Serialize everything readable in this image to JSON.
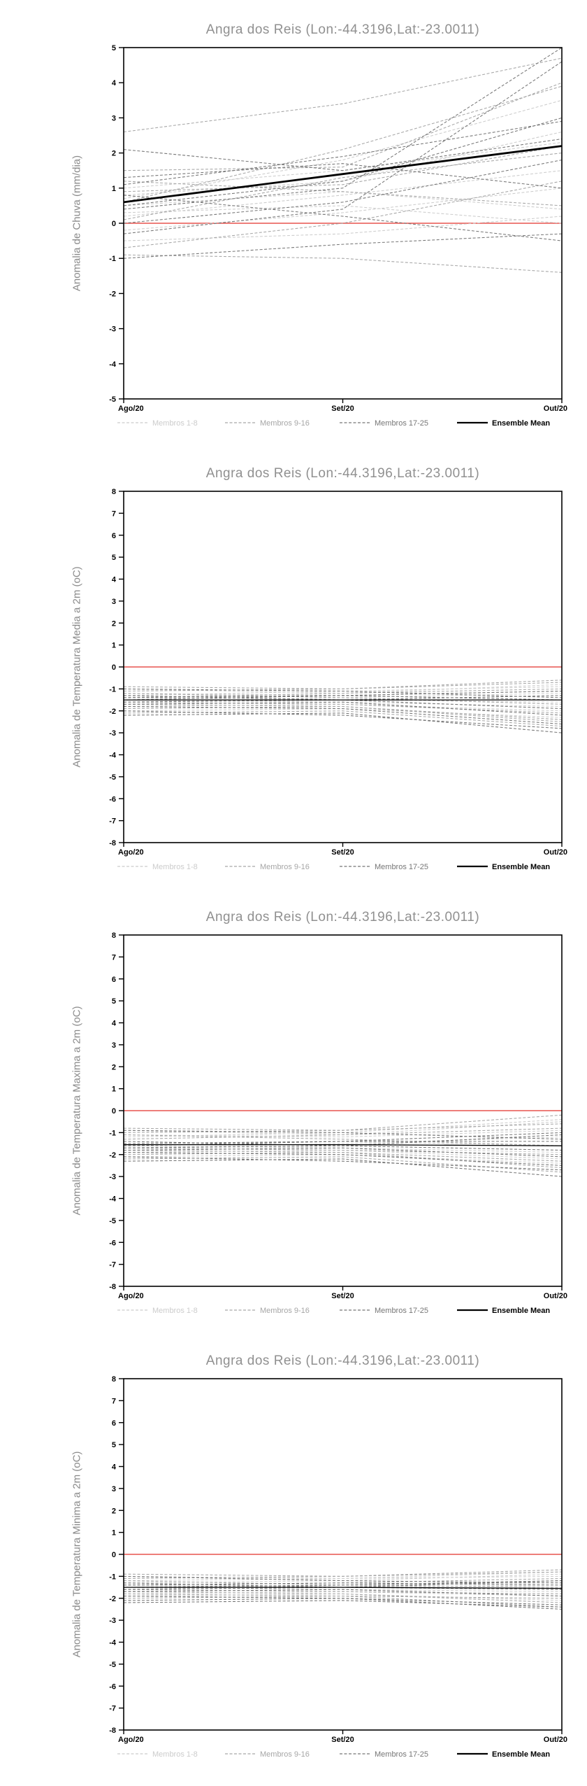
{
  "page": {
    "location_title": "Angra dos Reis (Lon:-44.3196,Lat:-23.0011)"
  },
  "colors": {
    "title": "#909090",
    "ylabel": "#8a8a8a",
    "axis": "#000000",
    "tick_label": "#000000",
    "zero_line": "#e8534e",
    "mean": "#000000",
    "member_light": "#cccccc",
    "member_mid": "#a6a6a6",
    "member_dark": "#767676"
  },
  "chart_data": [
    {
      "type": "line",
      "title": "Angra dos Reis (Lon:-44.3196,Lat:-23.0011)",
      "ylabel": "Anomalia de Chuva (mm/dia)",
      "x_labels": [
        "Ago/20",
        "Set/20",
        "Out/20"
      ],
      "ylim": [
        -5,
        5
      ],
      "y_tick_step": 1,
      "zero_line_value": 0,
      "mean_label": "Ensemble Mean",
      "mean_stroke_width": 2.8,
      "ensemble_mean": [
        0.6,
        1.4,
        2.2
      ],
      "groups": [
        {
          "name": "Membros 1-8",
          "color": "#cccccc",
          "series": [
            [
              0.8,
              1.2,
              2.6
            ],
            [
              0.5,
              0.9,
              0.4
            ],
            [
              -0.2,
              0.3,
              1.0
            ],
            [
              1.0,
              1.5,
              2.3
            ],
            [
              0.2,
              0.8,
              1.5
            ],
            [
              -0.5,
              -0.3,
              0.2
            ],
            [
              0.7,
              1.8,
              3.5
            ],
            [
              0.3,
              0.5,
              0.0
            ]
          ]
        },
        {
          "name": "Membros 9-16",
          "color": "#a6a6a6",
          "series": [
            [
              2.6,
              3.4,
              4.7
            ],
            [
              1.5,
              1.6,
              4.0
            ],
            [
              0.9,
              1.1,
              2.2
            ],
            [
              -0.9,
              -1.0,
              -1.4
            ],
            [
              0.1,
              1.3,
              2.0
            ],
            [
              1.2,
              0.9,
              0.5
            ],
            [
              -0.7,
              0.0,
              1.2
            ],
            [
              0.6,
              2.1,
              3.9
            ]
          ]
        },
        {
          "name": "Membros 17-25",
          "color": "#767676",
          "series": [
            [
              2.1,
              1.5,
              2.4
            ],
            [
              0.4,
              1.0,
              5.0
            ],
            [
              -1.0,
              -0.6,
              -0.3
            ],
            [
              0.0,
              0.6,
              1.8
            ],
            [
              1.1,
              1.9,
              2.9
            ],
            [
              0.8,
              0.2,
              -0.5
            ],
            [
              -0.3,
              0.4,
              4.6
            ],
            [
              0.5,
              1.2,
              3.0
            ],
            [
              1.3,
              1.7,
              1.0
            ]
          ]
        }
      ]
    },
    {
      "type": "line",
      "title": "Angra dos Reis (Lon:-44.3196,Lat:-23.0011)",
      "ylabel": "Anomalia de Temperatura Media a 2m (oC)",
      "x_labels": [
        "Ago/20",
        "Set/20",
        "Out/20"
      ],
      "ylim": [
        -8,
        8
      ],
      "y_tick_step": 1,
      "zero_line_value": 0,
      "mean_label": "Ensemble Mean",
      "mean_stroke_width": 1.3,
      "ensemble_mean": [
        -1.5,
        -1.5,
        -1.5
      ],
      "groups": [
        {
          "name": "Membros 1-8",
          "color": "#cccccc",
          "series": [
            [
              -1.2,
              -1.3,
              -1.1
            ],
            [
              -1.4,
              -1.5,
              -1.6
            ],
            [
              -1.6,
              -1.4,
              -1.2
            ],
            [
              -1.8,
              -1.7,
              -2.0
            ],
            [
              -1.0,
              -1.2,
              -0.8
            ],
            [
              -2.0,
              -1.9,
              -2.3
            ],
            [
              -1.3,
              -1.1,
              -0.9
            ],
            [
              -1.5,
              -1.6,
              -1.8
            ]
          ]
        },
        {
          "name": "Membros 9-16",
          "color": "#a6a6a6",
          "series": [
            [
              -1.7,
              -1.8,
              -2.5
            ],
            [
              -0.9,
              -1.0,
              -0.6
            ],
            [
              -2.1,
              -2.0,
              -2.7
            ],
            [
              -1.4,
              -1.2,
              -1.0
            ],
            [
              -1.6,
              -1.7,
              -2.1
            ],
            [
              -1.2,
              -1.4,
              -1.7
            ],
            [
              -1.9,
              -1.8,
              -2.4
            ],
            [
              -1.1,
              -1.0,
              -0.7
            ]
          ]
        },
        {
          "name": "Membros 17-25",
          "color": "#767676",
          "series": [
            [
              -2.2,
              -2.1,
              -3.0
            ],
            [
              -1.3,
              -1.5,
              -1.9
            ],
            [
              -1.5,
              -1.3,
              -1.1
            ],
            [
              -1.7,
              -1.6,
              -2.2
            ],
            [
              -1.0,
              -1.1,
              -1.4
            ],
            [
              -1.8,
              -1.9,
              -2.6
            ],
            [
              -1.4,
              -1.3,
              -1.5
            ],
            [
              -1.6,
              -1.5,
              -1.3
            ],
            [
              -2.0,
              -2.2,
              -2.8
            ]
          ]
        }
      ]
    },
    {
      "type": "line",
      "title": "Angra dos Reis (Lon:-44.3196,Lat:-23.0011)",
      "ylabel": "Anomalia de Temperatura Maxima a 2m (oC)",
      "x_labels": [
        "Ago/20",
        "Set/20",
        "Out/20"
      ],
      "ylim": [
        -8,
        8
      ],
      "y_tick_step": 1,
      "zero_line_value": 0,
      "mean_label": "Ensemble Mean",
      "mean_stroke_width": 1.3,
      "ensemble_mean": [
        -1.55,
        -1.55,
        -1.6
      ],
      "groups": [
        {
          "name": "Membros 1-8",
          "color": "#cccccc",
          "series": [
            [
              -1.1,
              -1.2,
              -0.9
            ],
            [
              -1.5,
              -1.4,
              -1.6
            ],
            [
              -1.7,
              -1.5,
              -1.2
            ],
            [
              -1.9,
              -1.8,
              -2.2
            ],
            [
              -0.9,
              -1.1,
              -0.5
            ],
            [
              -2.1,
              -2.0,
              -2.4
            ],
            [
              -1.2,
              -1.0,
              -0.4
            ],
            [
              -1.6,
              -1.7,
              -1.9
            ]
          ]
        },
        {
          "name": "Membros 9-16",
          "color": "#a6a6a6",
          "series": [
            [
              -1.8,
              -1.9,
              -2.6
            ],
            [
              -0.8,
              -0.9,
              -0.2
            ],
            [
              -2.2,
              -2.1,
              -2.8
            ],
            [
              -1.3,
              -1.1,
              -0.8
            ],
            [
              -1.7,
              -1.8,
              -2.0
            ],
            [
              -1.1,
              -1.3,
              -1.6
            ],
            [
              -2.0,
              -1.9,
              -2.3
            ],
            [
              -1.0,
              -0.9,
              -0.6
            ]
          ]
        },
        {
          "name": "Membros 17-25",
          "color": "#767676",
          "series": [
            [
              -2.3,
              -2.2,
              -3.0
            ],
            [
              -1.4,
              -1.6,
              -1.8
            ],
            [
              -1.6,
              -1.4,
              -1.0
            ],
            [
              -1.8,
              -1.7,
              -2.1
            ],
            [
              -0.9,
              -1.0,
              -1.3
            ],
            [
              -1.9,
              -2.0,
              -2.5
            ],
            [
              -1.5,
              -1.4,
              -1.4
            ],
            [
              -1.7,
              -1.6,
              -1.1
            ],
            [
              -2.1,
              -2.3,
              -2.7
            ]
          ]
        }
      ]
    },
    {
      "type": "line",
      "title": "Angra dos Reis (Lon:-44.3196,Lat:-23.0011)",
      "ylabel": "Anomalia de Temperatura Minima a 2m (oC)",
      "x_labels": [
        "Ago/20",
        "Set/20",
        "Out/20"
      ],
      "ylim": [
        -8,
        8
      ],
      "y_tick_step": 1,
      "zero_line_value": 0,
      "mean_label": "Ensemble Mean",
      "mean_stroke_width": 1.3,
      "ensemble_mean": [
        -1.5,
        -1.5,
        -1.55
      ],
      "groups": [
        {
          "name": "Membros 1-8",
          "color": "#cccccc",
          "series": [
            [
              -1.2,
              -1.1,
              -1.0
            ],
            [
              -1.4,
              -1.5,
              -1.4
            ],
            [
              -1.6,
              -1.4,
              -1.3
            ],
            [
              -1.8,
              -1.7,
              -1.9
            ],
            [
              -1.0,
              -1.1,
              -0.8
            ],
            [
              -1.9,
              -1.8,
              -2.1
            ],
            [
              -1.3,
              -1.2,
              -0.9
            ],
            [
              -1.5,
              -1.6,
              -1.7
            ]
          ]
        },
        {
          "name": "Membros 9-16",
          "color": "#a6a6a6",
          "series": [
            [
              -1.7,
              -1.8,
              -2.2
            ],
            [
              -0.9,
              -1.0,
              -0.7
            ],
            [
              -2.0,
              -1.9,
              -2.4
            ],
            [
              -1.4,
              -1.3,
              -1.1
            ],
            [
              -1.6,
              -1.7,
              -1.8
            ],
            [
              -1.2,
              -1.4,
              -1.5
            ],
            [
              -1.8,
              -1.9,
              -2.0
            ],
            [
              -1.1,
              -1.0,
              -0.8
            ]
          ]
        },
        {
          "name": "Membros 17-25",
          "color": "#767676",
          "series": [
            [
              -2.1,
              -2.0,
              -2.5
            ],
            [
              -1.3,
              -1.5,
              -1.6
            ],
            [
              -1.5,
              -1.4,
              -1.2
            ],
            [
              -1.7,
              -1.6,
              -1.9
            ],
            [
              -1.0,
              -1.2,
              -1.3
            ],
            [
              -1.9,
              -2.0,
              -2.3
            ],
            [
              -1.4,
              -1.3,
              -1.4
            ],
            [
              -1.6,
              -1.5,
              -1.2
            ],
            [
              -2.2,
              -2.1,
              -2.4
            ]
          ]
        }
      ]
    }
  ]
}
